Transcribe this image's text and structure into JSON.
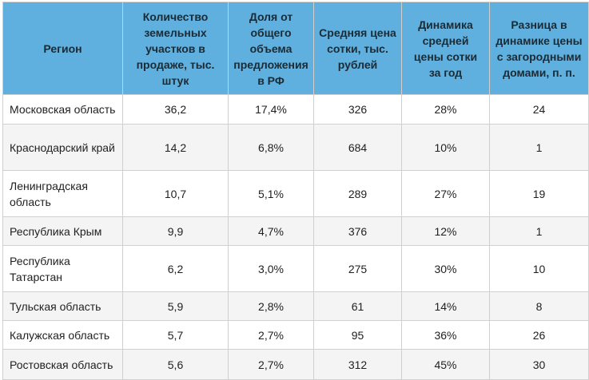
{
  "table": {
    "headers": [
      "Регион",
      "Количество земельных участков в продаже, тыс. штук",
      "Доля от общего объема предложения в РФ",
      "Средняя цена сотки, тыс. рублей",
      "Динамика средней цены сотки за год",
      "Разница в динамике цены с загородными домами, п. п."
    ],
    "rows": [
      {
        "region": "Московская область",
        "count": "36,2",
        "share": "17,4%",
        "price": "326",
        "dynamics": "28%",
        "diff": "24"
      },
      {
        "region": "Краснодарский край",
        "count": "14,2",
        "share": "6,8%",
        "price": "684",
        "dynamics": "10%",
        "diff": "1"
      },
      {
        "region": "Ленинградская область",
        "count": "10,7",
        "share": "5,1%",
        "price": "289",
        "dynamics": "27%",
        "diff": "19"
      },
      {
        "region": "Республика Крым",
        "count": "9,9",
        "share": "4,7%",
        "price": "376",
        "dynamics": "12%",
        "diff": "1"
      },
      {
        "region": "Республика Татарстан",
        "count": "6,2",
        "share": "3,0%",
        "price": "275",
        "dynamics": "30%",
        "diff": "10"
      },
      {
        "region": "Тульская область",
        "count": "5,9",
        "share": "2,8%",
        "price": "61",
        "dynamics": "14%",
        "diff": "8"
      },
      {
        "region": "Калужская область",
        "count": "5,7",
        "share": "2,7%",
        "price": "95",
        "dynamics": "36%",
        "diff": "26"
      },
      {
        "region": "Ростовская область",
        "count": "5,6",
        "share": "2,7%",
        "price": "312",
        "dynamics": "45%",
        "diff": "30"
      }
    ]
  },
  "colors": {
    "header_bg": "#5fb0de",
    "row_alt_bg": "#f4f4f4",
    "border": "#d0d0d0"
  }
}
